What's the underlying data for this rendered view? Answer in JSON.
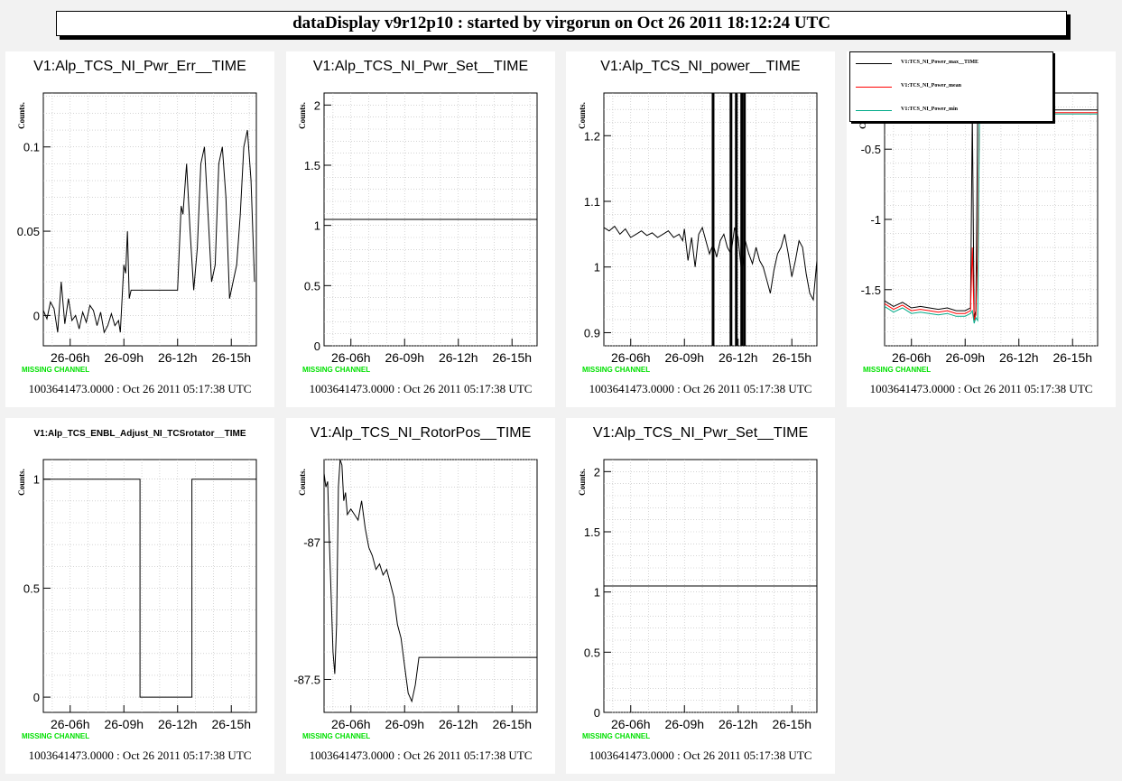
{
  "banner": "dataDisplay v9r12p10 : started by virgorun on Oct 26 2011 18:12:24 UTC",
  "common": {
    "ylabel": "Counts.",
    "missing": "MISSING CHANNEL",
    "stamp": "1003641473.0000 : Oct 26 2011 05:17:38 UTC",
    "xticks": [
      "26-06h",
      "26-09h",
      "26-12h",
      "26-15h"
    ]
  },
  "legend": {
    "entries": [
      {
        "label": "V1:TCS_NI_Power_max__TIME",
        "color": "#000000"
      },
      {
        "label": "V1:TCS_NI_Power_mean",
        "color": "#ff0000"
      },
      {
        "label": "V1:TCS_NI_Power_min",
        "color": "#00aa88"
      }
    ]
  },
  "chart_data": [
    {
      "type": "line",
      "title": "V1:Alp_TCS_NI_Pwr_Err__TIME",
      "ylabel": "Counts.",
      "xlabel": "",
      "x_ticks": [
        "26-06h",
        "26-09h",
        "26-12h",
        "26-15h"
      ],
      "xlim": [
        4.5,
        16.4
      ],
      "ylim": [
        -0.018,
        0.132
      ],
      "y_ticks": [
        0,
        0.05,
        0.1
      ],
      "y_tick_labels": [
        "0",
        "0.05",
        "0.1"
      ],
      "grid": true,
      "series": [
        {
          "x": [
            4.5,
            4.7,
            4.9,
            5.1,
            5.3,
            5.5,
            5.7,
            5.9,
            6.1,
            6.3,
            6.5,
            6.7,
            6.9,
            7.1,
            7.3,
            7.5,
            7.7,
            7.9,
            8.1,
            8.3,
            8.5,
            8.7,
            8.8,
            9.0,
            9.1,
            9.2,
            9.3,
            9.4,
            9.6,
            10.0,
            11.0,
            12.0,
            12.2,
            12.3,
            12.5,
            12.7,
            12.9,
            13.1,
            13.3,
            13.5,
            13.7,
            13.9,
            14.1,
            14.3,
            14.5,
            14.7,
            14.9,
            15.1,
            15.3,
            15.5,
            15.7,
            15.9,
            16.1,
            16.3
          ],
          "y": [
            0.003,
            -0.002,
            0.008,
            0.004,
            -0.01,
            0.02,
            -0.005,
            0.01,
            -0.003,
            0.0,
            -0.008,
            0.002,
            -0.004,
            0.006,
            0.003,
            -0.006,
            0.002,
            -0.01,
            -0.006,
            0.001,
            -0.006,
            -0.003,
            -0.01,
            0.03,
            0.025,
            0.05,
            0.01,
            0.015,
            0.015,
            0.015,
            0.015,
            0.015,
            0.065,
            0.06,
            0.09,
            0.05,
            0.015,
            0.04,
            0.09,
            0.1,
            0.06,
            0.02,
            0.03,
            0.09,
            0.1,
            0.07,
            0.01,
            0.02,
            0.03,
            0.06,
            0.1,
            0.11,
            0.08,
            0.02
          ]
        }
      ]
    },
    {
      "type": "line",
      "title": "V1:Alp_TCS_NI_Pwr_Set__TIME",
      "ylabel": "Counts.",
      "xlabel": "",
      "x_ticks": [
        "26-06h",
        "26-09h",
        "26-12h",
        "26-15h"
      ],
      "xlim": [
        4.5,
        16.4
      ],
      "ylim": [
        0,
        2.1
      ],
      "y_ticks": [
        0,
        0.5,
        1,
        1.5,
        2
      ],
      "y_tick_labels": [
        "0",
        "0.5",
        "1",
        "1.5",
        "2"
      ],
      "grid": true,
      "series": [
        {
          "x": [
            4.5,
            16.4
          ],
          "y": [
            1.05,
            1.05
          ]
        }
      ]
    },
    {
      "type": "line",
      "title": "V1:Alp_TCS_NI_power__TIME",
      "ylabel": "Counts.",
      "xlabel": "",
      "x_ticks": [
        "26-06h",
        "26-09h",
        "26-12h",
        "26-15h"
      ],
      "xlim": [
        4.5,
        16.4
      ],
      "ylim": [
        0.88,
        1.265
      ],
      "y_ticks": [
        0.9,
        1,
        1.1,
        1.2
      ],
      "y_tick_labels": [
        "0.9",
        "1",
        "1.1",
        "1.2"
      ],
      "grid": true,
      "series": [
        {
          "x": [
            4.5,
            4.8,
            5.1,
            5.4,
            5.7,
            6.0,
            6.3,
            6.6,
            6.9,
            7.2,
            7.5,
            7.8,
            8.1,
            8.4,
            8.7,
            8.9,
            9.0,
            9.2,
            9.4,
            9.6,
            9.8,
            10.0,
            10.2,
            10.4,
            10.6,
            10.8,
            11.0,
            11.2,
            11.4,
            11.6,
            11.8,
            12.0,
            12.2,
            12.4,
            12.6,
            12.8,
            13.0,
            13.2,
            13.4,
            13.6,
            13.8,
            14.0,
            14.2,
            14.4,
            14.6,
            14.8,
            15.0,
            15.2,
            15.4,
            15.6,
            15.8,
            16.0,
            16.2,
            16.4
          ],
          "y": [
            1.06,
            1.055,
            1.062,
            1.05,
            1.058,
            1.045,
            1.05,
            1.055,
            1.048,
            1.052,
            1.045,
            1.05,
            1.055,
            1.045,
            1.05,
            1.04,
            1.058,
            1.01,
            1.045,
            1.0,
            1.05,
            1.06,
            1.04,
            1.02,
            1.035,
            1.015,
            1.04,
            1.05,
            1.03,
            1.02,
            1.06,
            1.045,
            0.99,
            1.04,
            1.02,
            1.005,
            1.03,
            1.01,
            1.0,
            0.98,
            0.96,
            0.995,
            1.02,
            1.03,
            1.05,
            1.02,
            0.985,
            1.01,
            1.04,
            1.03,
            0.99,
            0.96,
            0.95,
            1.01
          ]
        }
      ],
      "spikes_x": [
        10.6,
        11.6,
        11.9,
        12.2,
        12.35
      ]
    },
    {
      "type": "line",
      "title": "",
      "ylabel": "Counts.",
      "xlabel": "",
      "x_ticks": [
        "26-06h",
        "26-09h",
        "26-12h",
        "26-15h"
      ],
      "xlim": [
        4.5,
        16.4
      ],
      "ylim": [
        -1.9,
        -0.1
      ],
      "y_ticks": [
        -1.5,
        -1,
        -0.5
      ],
      "y_tick_labels": [
        "-1.5",
        "-1",
        "-0.5"
      ],
      "grid": true,
      "series": [
        {
          "x": [
            4.5,
            5.0,
            5.5,
            6.0,
            6.5,
            7.0,
            7.5,
            8.0,
            8.5,
            9.0,
            9.3,
            9.4,
            9.5,
            9.6,
            9.7,
            9.8,
            10.0,
            10.5,
            11.0,
            12.0,
            13.0,
            14.0,
            15.0,
            16.4
          ],
          "y": [
            -1.58,
            -1.62,
            -1.59,
            -1.63,
            -1.62,
            -1.63,
            -1.64,
            -1.63,
            -1.65,
            -1.65,
            -1.63,
            -0.25,
            -1.7,
            -1.65,
            -0.25,
            -0.22,
            -0.22,
            -0.22,
            -0.22,
            -0.22,
            -0.22,
            -0.22,
            -0.22,
            -0.22
          ]
        },
        {
          "x": [
            4.5,
            5.0,
            5.5,
            6.0,
            6.5,
            7.0,
            7.5,
            8.0,
            8.5,
            9.0,
            9.3,
            9.4,
            9.5,
            9.6,
            9.7,
            9.8,
            10.0,
            10.5,
            11.0,
            12.0,
            13.0,
            14.0,
            15.0,
            16.4
          ],
          "y": [
            -1.6,
            -1.64,
            -1.61,
            -1.65,
            -1.64,
            -1.65,
            -1.66,
            -1.65,
            -1.67,
            -1.67,
            -1.65,
            -1.2,
            -1.72,
            -1.68,
            -1.2,
            -0.24,
            -0.24,
            -0.24,
            -0.24,
            -0.24,
            -0.24,
            -0.24,
            -0.24,
            -0.24
          ]
        },
        {
          "x": [
            4.5,
            5.0,
            5.5,
            6.0,
            6.5,
            7.0,
            7.5,
            8.0,
            8.5,
            9.0,
            9.3,
            9.4,
            9.5,
            9.6,
            9.7,
            9.8,
            10.0,
            10.5,
            11.0,
            12.0,
            13.0,
            14.0,
            15.0,
            16.4
          ],
          "y": [
            -1.62,
            -1.66,
            -1.63,
            -1.67,
            -1.66,
            -1.67,
            -1.68,
            -1.67,
            -1.69,
            -1.69,
            -1.67,
            -1.65,
            -1.74,
            -1.7,
            -1.72,
            -0.25,
            -0.25,
            -0.25,
            -0.25,
            -0.25,
            -0.25,
            -0.25,
            -0.25,
            -0.25
          ]
        }
      ]
    },
    {
      "type": "line",
      "title": "V1:Alp_TCS_ENBL_Adjust_NI_TCSrotator__TIME",
      "ylabel": "Counts.",
      "xlabel": "",
      "x_ticks": [
        "26-06h",
        "26-09h",
        "26-12h",
        "26-15h"
      ],
      "xlim": [
        4.5,
        16.4
      ],
      "ylim": [
        -0.07,
        1.09
      ],
      "y_ticks": [
        0,
        0.5,
        1
      ],
      "y_tick_labels": [
        "0",
        "0.5",
        "1"
      ],
      "grid": true,
      "series": [
        {
          "x": [
            4.5,
            9.9,
            9.9,
            12.8,
            12.8,
            16.4
          ],
          "y": [
            1,
            1,
            0,
            0,
            1,
            1
          ]
        }
      ]
    },
    {
      "type": "line",
      "title": "V1:Alp_TCS_NI_RotorPos__TIME",
      "ylabel": "Counts.",
      "xlabel": "",
      "x_ticks": [
        "26-06h",
        "26-09h",
        "26-12h",
        "26-15h"
      ],
      "xlim": [
        4.5,
        16.4
      ],
      "ylim": [
        -87.62,
        -86.7
      ],
      "y_ticks": [
        -87.5,
        -87
      ],
      "y_tick_labels": [
        "-87.5",
        "-87"
      ],
      "grid": true,
      "series": [
        {
          "x": [
            4.5,
            4.6,
            4.7,
            4.8,
            4.9,
            5.0,
            5.1,
            5.2,
            5.3,
            5.4,
            5.5,
            5.6,
            5.7,
            5.8,
            6.0,
            6.2,
            6.4,
            6.6,
            6.8,
            7.0,
            7.2,
            7.4,
            7.6,
            7.8,
            8.0,
            8.2,
            8.4,
            8.6,
            8.8,
            9.0,
            9.2,
            9.4,
            9.6,
            9.8,
            10.0,
            10.2,
            16.4
          ],
          "y": [
            -86.75,
            -86.8,
            -86.78,
            -87.0,
            -87.2,
            -87.4,
            -87.48,
            -87.3,
            -86.8,
            -86.7,
            -86.72,
            -86.85,
            -86.82,
            -86.9,
            -86.88,
            -86.9,
            -86.92,
            -86.85,
            -86.95,
            -87.02,
            -87.05,
            -87.1,
            -87.08,
            -87.12,
            -87.1,
            -87.15,
            -87.2,
            -87.3,
            -87.35,
            -87.45,
            -87.55,
            -87.58,
            -87.52,
            -87.42,
            -87.42,
            -87.42,
            -87.42
          ]
        }
      ]
    },
    {
      "type": "line",
      "title": "V1:Alp_TCS_NI_Pwr_Set__TIME",
      "ylabel": "Counts.",
      "xlabel": "",
      "x_ticks": [
        "26-06h",
        "26-09h",
        "26-12h",
        "26-15h"
      ],
      "xlim": [
        4.5,
        16.4
      ],
      "ylim": [
        0,
        2.1
      ],
      "y_ticks": [
        0,
        0.5,
        1,
        1.5,
        2
      ],
      "y_tick_labels": [
        "0",
        "0.5",
        "1",
        "1.5",
        "2"
      ],
      "grid": true,
      "series": [
        {
          "x": [
            4.5,
            16.4
          ],
          "y": [
            1.05,
            1.05
          ]
        }
      ]
    }
  ]
}
